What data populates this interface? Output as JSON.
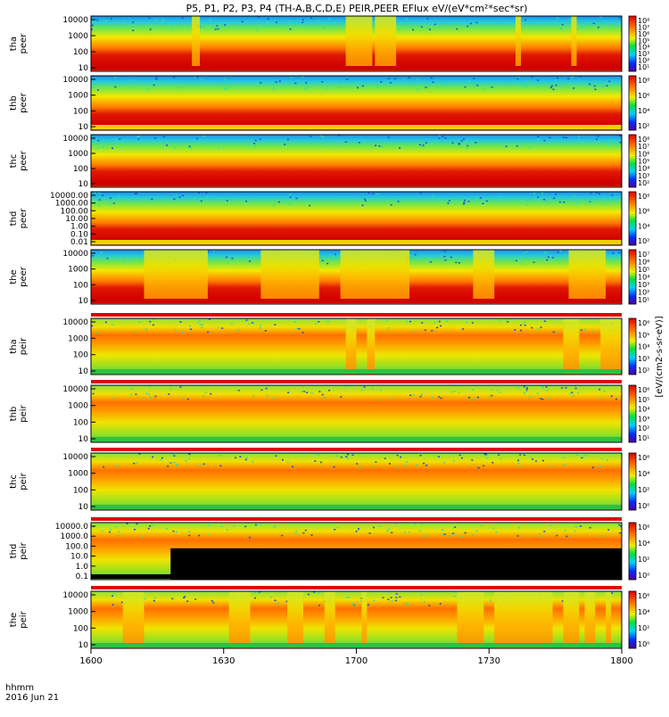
{
  "title": "P5, P1, P2, P3, P4 (TH-A,B,C,D,E) PEIR,PEER EFlux eV/(eV*cm²*sec*sr)",
  "time_axis": {
    "row_label": "hhmm",
    "date_label": "2016 Jun 21",
    "ticks": [
      "1600",
      "1630",
      "1700",
      "1730",
      "1800"
    ]
  },
  "colorbar_unit": "[eV/(cm2-s-sr-eV)]",
  "chart_data": [
    {
      "type": "heatmap",
      "species": "electron",
      "ylabel": [
        "tha",
        "peer"
      ],
      "yscale": "log",
      "ylim": [
        8,
        30000
      ],
      "yticks": [
        "10000",
        "1000",
        "100",
        "10"
      ],
      "cbar": [
        "10⁸",
        "10⁷",
        "10⁶",
        "10⁵",
        "10⁴",
        "10³",
        "10²",
        "10¹"
      ],
      "baseline": "red",
      "gaps": [
        [
          0.19,
          0.205
        ],
        [
          0.48,
          0.53
        ],
        [
          0.535,
          0.575
        ],
        [
          0.8,
          0.81
        ],
        [
          0.905,
          0.915
        ]
      ]
    },
    {
      "type": "heatmap",
      "species": "electron",
      "ylabel": [
        "thb",
        "peer"
      ],
      "yscale": "log",
      "ylim": [
        8,
        30000
      ],
      "yticks": [
        "10000",
        "1000",
        "100",
        "10"
      ],
      "cbar": [
        "10⁸",
        "10⁶",
        "10⁴",
        "10²"
      ],
      "baseline": "yellow",
      "gaps": []
    },
    {
      "type": "heatmap",
      "species": "electron",
      "ylabel": [
        "thc",
        "peer"
      ],
      "yscale": "log",
      "ylim": [
        8,
        30000
      ],
      "yticks": [
        "10000",
        "1000",
        "100",
        "10"
      ],
      "cbar": [
        "10⁸",
        "10⁷",
        "10⁶",
        "10⁵",
        "10⁴",
        "10³",
        "10²"
      ],
      "baseline": "red",
      "gaps": []
    },
    {
      "type": "heatmap",
      "species": "electron",
      "ylabel": [
        "thd",
        "peer"
      ],
      "yscale": "log",
      "ylim": [
        0.01,
        30000
      ],
      "yticks": [
        "10000.00",
        "1000.00",
        "100.00",
        "10.00",
        "1.00",
        "0.10",
        "0.01"
      ],
      "cbar": [
        "10⁸",
        "10⁶",
        "10⁴",
        "10²"
      ],
      "baseline": "yellow",
      "gaps": []
    },
    {
      "type": "heatmap",
      "species": "electron",
      "ylabel": [
        "the",
        "peer"
      ],
      "yscale": "log",
      "ylim": [
        8,
        30000
      ],
      "yticks": [
        "10000",
        "1000",
        "100",
        "10"
      ],
      "cbar": [
        "10⁷",
        "10⁶",
        "10⁵",
        "10⁴",
        "10³",
        "10²",
        "10¹"
      ],
      "baseline": "red",
      "gaps": [
        [
          0.1,
          0.22
        ],
        [
          0.32,
          0.43
        ],
        [
          0.47,
          0.6
        ],
        [
          0.72,
          0.76
        ],
        [
          0.9,
          0.97
        ]
      ]
    },
    {
      "type": "heatmap",
      "species": "ion",
      "ylabel": [
        "tha",
        "peir"
      ],
      "yscale": "log",
      "ylim": [
        8,
        30000
      ],
      "yticks": [
        "10000",
        "1000",
        "100",
        "10"
      ],
      "cbar": [
        "10⁶",
        "10⁵",
        "10⁴",
        "10³",
        "10²"
      ],
      "baseline": "green",
      "gaps": [
        [
          0.48,
          0.5
        ],
        [
          0.52,
          0.535
        ],
        [
          0.89,
          0.92
        ],
        [
          0.96,
          1.0
        ]
      ]
    },
    {
      "type": "heatmap",
      "species": "ion",
      "ylabel": [
        "thb",
        "peir"
      ],
      "yscale": "log",
      "ylim": [
        8,
        30000
      ],
      "yticks": [
        "10000",
        "1000",
        "100",
        "10"
      ],
      "cbar": [
        "10⁶",
        "10⁵",
        "10⁴",
        "10³",
        "10²",
        "10¹"
      ],
      "baseline": "green",
      "gaps": []
    },
    {
      "type": "heatmap",
      "species": "ion",
      "ylabel": [
        "thc",
        "peir"
      ],
      "yscale": "log",
      "ylim": [
        8,
        30000
      ],
      "yticks": [
        "10000",
        "1000",
        "100",
        "10"
      ],
      "cbar": [
        "10⁶",
        "10⁴",
        "10²",
        "10⁰"
      ],
      "baseline": "green",
      "gaps": []
    },
    {
      "type": "heatmap",
      "species": "ion",
      "ylabel": [
        "thd",
        "peir"
      ],
      "yscale": "log",
      "ylim": [
        0.1,
        30000
      ],
      "yticks": [
        "10000.0",
        "1000.0",
        "100.0",
        "10.0",
        "1.0",
        "0.1"
      ],
      "cbar": [
        "10⁶",
        "10⁴",
        "10²",
        "10⁰"
      ],
      "baseline": "black",
      "gaps": []
    },
    {
      "type": "heatmap",
      "species": "ion",
      "ylabel": [
        "the",
        "peir"
      ],
      "yscale": "log",
      "ylim": [
        8,
        30000
      ],
      "yticks": [
        "10000",
        "1000",
        "100",
        "10"
      ],
      "cbar": [
        "10⁶",
        "10⁴",
        "10²",
        "10⁰"
      ],
      "baseline": "green",
      "gaps": [
        [
          0.06,
          0.1
        ],
        [
          0.26,
          0.3
        ],
        [
          0.37,
          0.4
        ],
        [
          0.44,
          0.46
        ],
        [
          0.51,
          0.52
        ],
        [
          0.69,
          0.74
        ],
        [
          0.76,
          0.87
        ],
        [
          0.89,
          0.92
        ],
        [
          0.93,
          0.95
        ],
        [
          0.97,
          0.98
        ]
      ]
    }
  ]
}
